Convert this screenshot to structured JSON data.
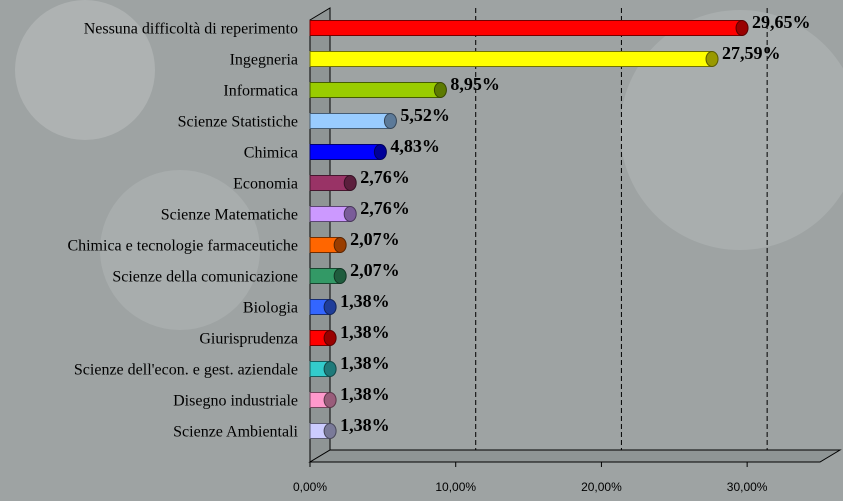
{
  "chart_data": {
    "type": "bar",
    "orientation": "horizontal",
    "categories": [
      "Nessuna difficoltà di reperimento",
      "Ingegneria",
      "Informatica",
      "Scienze Statistiche",
      "Chimica",
      "Economia",
      "Scienze Matematiche",
      "Chimica e tecnologie farmaceutiche",
      "Scienze della comunicazione",
      "Biologia",
      "Giurisprudenza",
      "Scienze dell'econ. e gest. aziendale",
      "Disegno industriale",
      "Scienze Ambientali"
    ],
    "values": [
      29.65,
      27.59,
      8.95,
      5.52,
      4.83,
      2.76,
      2.76,
      2.07,
      2.07,
      1.38,
      1.38,
      1.38,
      1.38,
      1.38
    ],
    "value_labels": [
      "29,65%",
      "27,59%",
      "8,95%",
      "5,52%",
      "4,83%",
      "2,76%",
      "2,76%",
      "2,07%",
      "2,07%",
      "1,38%",
      "1,38%",
      "1,38%",
      "1,38%",
      "1,38%"
    ],
    "colors": [
      "#ff0000",
      "#ffff00",
      "#99cc00",
      "#99ccff",
      "#0000ff",
      "#993366",
      "#cc99ff",
      "#ff6600",
      "#339966",
      "#3366ff",
      "#ff0000",
      "#33cccc",
      "#ff99cc",
      "#ccccff"
    ],
    "xlim": [
      0,
      35
    ],
    "xticks": [
      {
        "value": 0,
        "label": "0,00%"
      },
      {
        "value": 10,
        "label": "10,00%"
      },
      {
        "value": 20,
        "label": "20,00%"
      },
      {
        "value": 30,
        "label": "30,00%"
      }
    ],
    "grid": true
  }
}
